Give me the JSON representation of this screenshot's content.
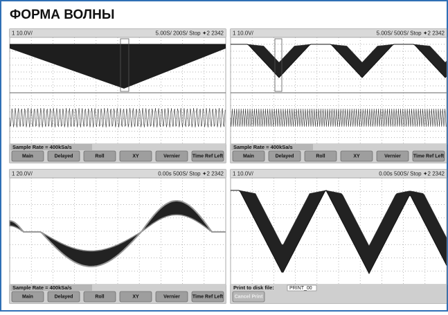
{
  "title": "ФОРМА ВОЛНЫ",
  "panels": [
    {
      "channel": "1 10.0V/",
      "timebase": "5.00S/  200S/  Stop  ✦2  2342",
      "sample_rate": "Sample Rate = 400kSa/s",
      "softkeys": [
        "Main",
        "Delayed",
        "Roll",
        "XY",
        "Vernier",
        "Time Ref Left"
      ]
    },
    {
      "channel": "1 10.0V/",
      "timebase": "5.00S/  500S/  Stop  ✦2  2342",
      "sample_rate": "Sample Rate = 400kSa/s",
      "softkeys": [
        "Main",
        "Delayed",
        "Roll",
        "XY",
        "Vernier",
        "Time Ref Left"
      ]
    },
    {
      "channel": "1 20.0V/",
      "timebase": "0.00s  500S/  Stop  ✦2  2342",
      "sample_rate": "Sample Rate = 400kSa/s",
      "softkeys": [
        "Main",
        "Delayed",
        "Roll",
        "XY",
        "Vernier",
        "Time Ref Left"
      ]
    },
    {
      "channel": "1 10.0V/",
      "timebase": "0.00s  500S/  Stop  ✦2  2342",
      "print_prompt": "Print to disk file:",
      "filename": "PRINT_00",
      "softkeys": [
        "Cancel Print"
      ]
    }
  ]
}
